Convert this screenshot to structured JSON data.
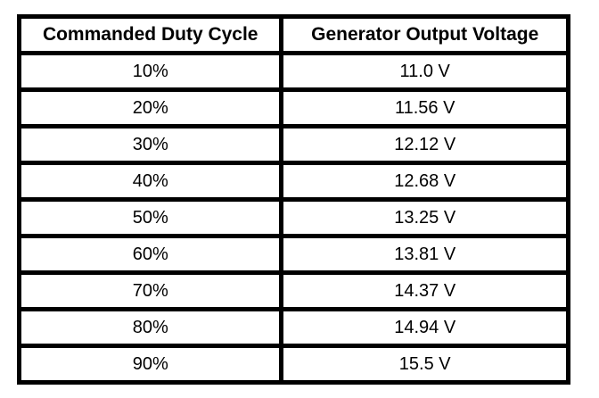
{
  "table": {
    "columns": [
      "Commanded Duty Cycle",
      "Generator Output Voltage"
    ],
    "rows": [
      [
        "10%",
        "11.0 V"
      ],
      [
        "20%",
        "11.56 V"
      ],
      [
        "30%",
        "12.12 V"
      ],
      [
        "40%",
        "12.68 V"
      ],
      [
        "50%",
        "13.25 V"
      ],
      [
        "60%",
        "13.81 V"
      ],
      [
        "70%",
        "14.37 V"
      ],
      [
        "80%",
        "14.94 V"
      ],
      [
        "90%",
        "15.5 V"
      ]
    ]
  },
  "colors": {
    "border": "#000000",
    "background": "#ffffff",
    "text": "#000000"
  },
  "chart_data": {
    "type": "table",
    "title": "",
    "columns": [
      "Commanded Duty Cycle",
      "Generator Output Voltage"
    ],
    "rows": [
      [
        "10%",
        "11.0 V"
      ],
      [
        "20%",
        "11.56 V"
      ],
      [
        "30%",
        "12.12 V"
      ],
      [
        "40%",
        "12.68 V"
      ],
      [
        "50%",
        "13.25 V"
      ],
      [
        "60%",
        "13.81 V"
      ],
      [
        "70%",
        "14.37 V"
      ],
      [
        "80%",
        "14.94 V"
      ],
      [
        "90%",
        "15.5 V"
      ]
    ],
    "duty_cycle_percent": [
      10,
      20,
      30,
      40,
      50,
      60,
      70,
      80,
      90
    ],
    "output_voltage_v": [
      11.0,
      11.56,
      12.12,
      12.68,
      13.25,
      13.81,
      14.37,
      14.94,
      15.5
    ]
  }
}
